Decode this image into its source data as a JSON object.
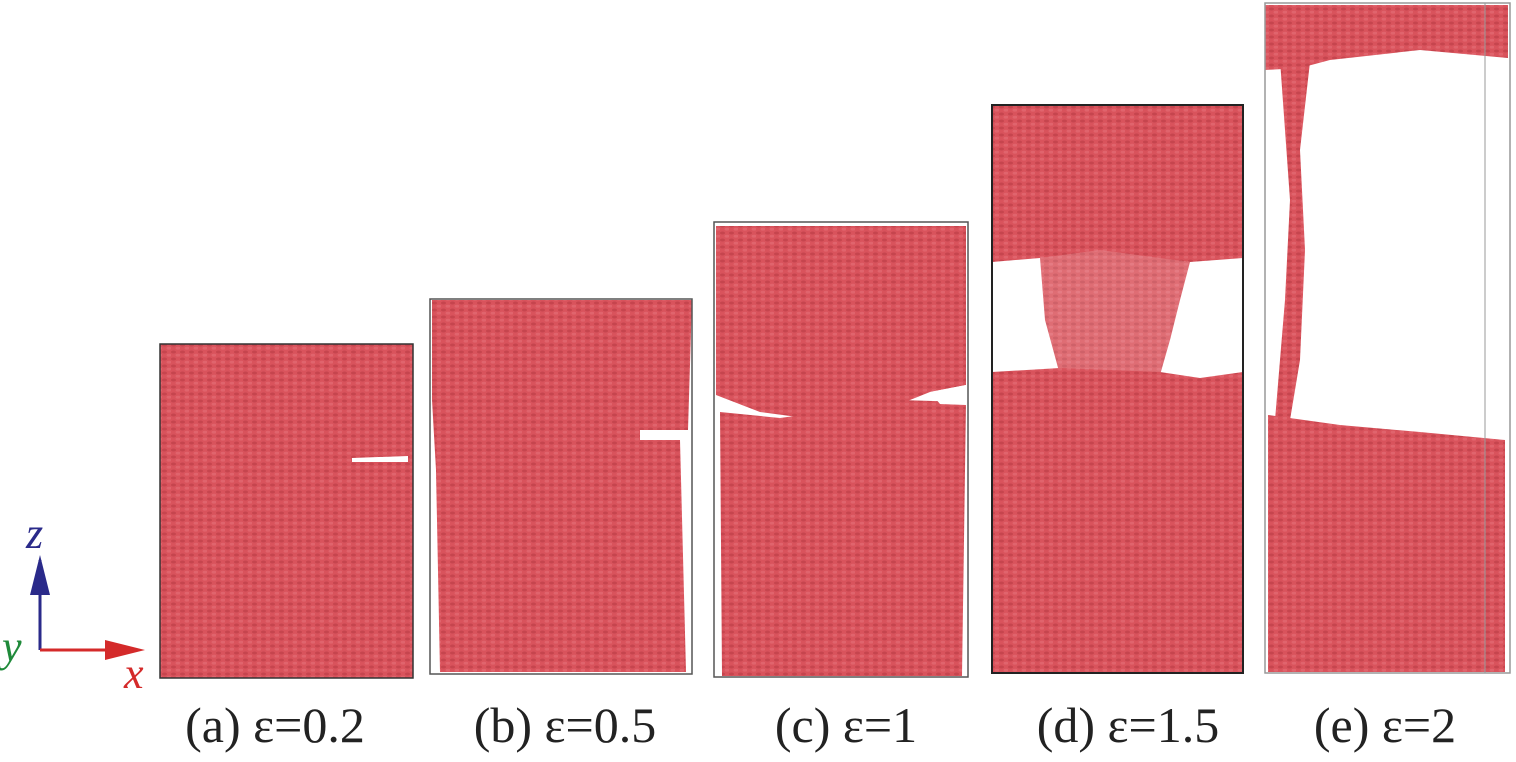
{
  "panels": [
    {
      "id": "a",
      "caption": "(a) ε=0.2"
    },
    {
      "id": "b",
      "caption": "(b) ε=0.5"
    },
    {
      "id": "c",
      "caption": "(c) ε=1"
    },
    {
      "id": "d",
      "caption": "(d) ε=1.5"
    },
    {
      "id": "e",
      "caption": "(e) ε=2"
    }
  ],
  "axes": {
    "z_label": "z",
    "y_label": "y",
    "x_label": "x",
    "z_color": "#2a2a8a",
    "y_color": "#1f8a3a",
    "x_color": "#d42a2a"
  },
  "colors": {
    "material": "#d9535c",
    "material_dark": "#b63a44",
    "box_outline": "#333333"
  }
}
